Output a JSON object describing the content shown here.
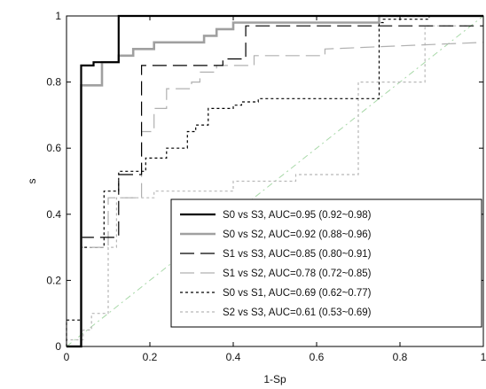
{
  "chart_data": {
    "type": "line",
    "xlabel": "1-Sp",
    "ylabel": "s",
    "xlim": [
      0,
      1
    ],
    "ylim": [
      0,
      1
    ],
    "x_ticks": [
      0,
      0.2,
      0.4,
      0.6,
      0.8,
      1
    ],
    "x_tick_labels": [
      "0",
      "0.2",
      "0.4",
      "0.6",
      "0.8",
      "1"
    ],
    "y_ticks": [
      0,
      0.2,
      0.4,
      0.6,
      0.8,
      1
    ],
    "y_tick_labels": [
      "0",
      "0.2",
      "0.4",
      "0.6",
      "0.8",
      "1"
    ],
    "grid": false,
    "legend_position": "bottom-right",
    "reference_line": {
      "x": [
        0,
        1
      ],
      "y": [
        0,
        1
      ],
      "color": "#a8d8a8",
      "style": "dash-dot"
    },
    "series": [
      {
        "name": "S0 vs S3, AUC=0.95 (0.92~0.98)",
        "color": "#000000",
        "style": "solid",
        "width": 2.2,
        "x": [
          0,
          0.035,
          0.035,
          0.06,
          0.06,
          0.065,
          0.065,
          0.125,
          0.125,
          1.0
        ],
        "y": [
          0,
          0.0,
          0.85,
          0.85,
          0.85,
          0.85,
          0.86,
          0.86,
          1.0,
          1.0
        ]
      },
      {
        "name": "S0 vs S2, AUC=0.92 (0.88~0.96)",
        "color": "#a0a0a0",
        "style": "solid",
        "width": 2.6,
        "x": [
          0,
          0.035,
          0.035,
          0.085,
          0.085,
          0.125,
          0.125,
          0.16,
          0.16,
          0.21,
          0.21,
          0.33,
          0.33,
          0.36,
          0.36,
          0.4,
          0.4,
          0.75,
          0.75,
          1.0
        ],
        "y": [
          0,
          0.0,
          0.79,
          0.79,
          0.86,
          0.86,
          0.88,
          0.88,
          0.9,
          0.9,
          0.92,
          0.92,
          0.94,
          0.94,
          0.96,
          0.96,
          0.98,
          0.98,
          1.0,
          1.0
        ]
      },
      {
        "name": "S1 vs S3, AUC=0.85 (0.80~0.91)",
        "color": "#000000",
        "style": "longdash",
        "width": 1.2,
        "x": [
          0,
          0.035,
          0.035,
          0.125,
          0.125,
          0.18,
          0.18,
          0.375,
          0.375,
          0.43,
          0.43,
          1.0
        ],
        "y": [
          0,
          0.0,
          0.33,
          0.33,
          0.52,
          0.52,
          0.85,
          0.85,
          0.87,
          0.87,
          0.97,
          0.97
        ]
      },
      {
        "name": "S1 vs S2, AUC=0.78 (0.72~0.85)",
        "color": "#b0b0b0",
        "style": "longdash",
        "width": 1.2,
        "x": [
          0,
          0.035,
          0.035,
          0.1,
          0.1,
          0.18,
          0.18,
          0.21,
          0.21,
          0.24,
          0.24,
          0.3,
          0.3,
          0.32,
          0.32,
          0.36,
          0.36,
          0.45,
          0.45,
          0.62,
          0.62,
          1.0
        ],
        "y": [
          0,
          0.0,
          0.3,
          0.3,
          0.45,
          0.45,
          0.65,
          0.65,
          0.72,
          0.72,
          0.78,
          0.78,
          0.8,
          0.8,
          0.83,
          0.83,
          0.85,
          0.85,
          0.88,
          0.88,
          0.9,
          0.92
        ]
      },
      {
        "name": "S0 vs S1, AUC=0.69 (0.62~0.77)",
        "color": "#000000",
        "style": "dotted",
        "width": 1.2,
        "x": [
          0,
          0.0,
          0.035,
          0.035,
          0.09,
          0.09,
          0.125,
          0.125,
          0.19,
          0.19,
          0.24,
          0.24,
          0.29,
          0.29,
          0.31,
          0.31,
          0.34,
          0.34,
          0.4,
          0.4,
          0.42,
          0.42,
          0.46,
          0.46,
          0.75,
          0.75,
          0.76,
          0.76,
          0.87,
          0.87,
          0.96,
          0.96
        ],
        "y": [
          0,
          0.08,
          0.08,
          0.3,
          0.3,
          0.47,
          0.47,
          0.53,
          0.53,
          0.57,
          0.57,
          0.6,
          0.6,
          0.65,
          0.65,
          0.67,
          0.67,
          0.72,
          0.72,
          0.73,
          0.73,
          0.74,
          0.74,
          0.75,
          0.75,
          0.98,
          0.98,
          0.99,
          0.99,
          1.0,
          1.0,
          1.0
        ]
      },
      {
        "name": "S2 vs S3, AUC=0.61 (0.53~0.69)",
        "color": "#b8b8b8",
        "style": "dotted",
        "width": 1.2,
        "x": [
          0,
          0.0,
          0.04,
          0.04,
          0.06,
          0.06,
          0.1,
          0.1,
          0.12,
          0.12,
          0.21,
          0.21,
          0.4,
          0.4,
          0.55,
          0.55,
          0.7,
          0.7,
          0.86,
          0.86,
          0.96
        ],
        "y": [
          0,
          0.02,
          0.02,
          0.05,
          0.05,
          0.1,
          0.1,
          0.3,
          0.3,
          0.45,
          0.45,
          0.47,
          0.47,
          0.5,
          0.5,
          0.52,
          0.52,
          0.8,
          0.8,
          0.97,
          0.97
        ]
      }
    ]
  }
}
